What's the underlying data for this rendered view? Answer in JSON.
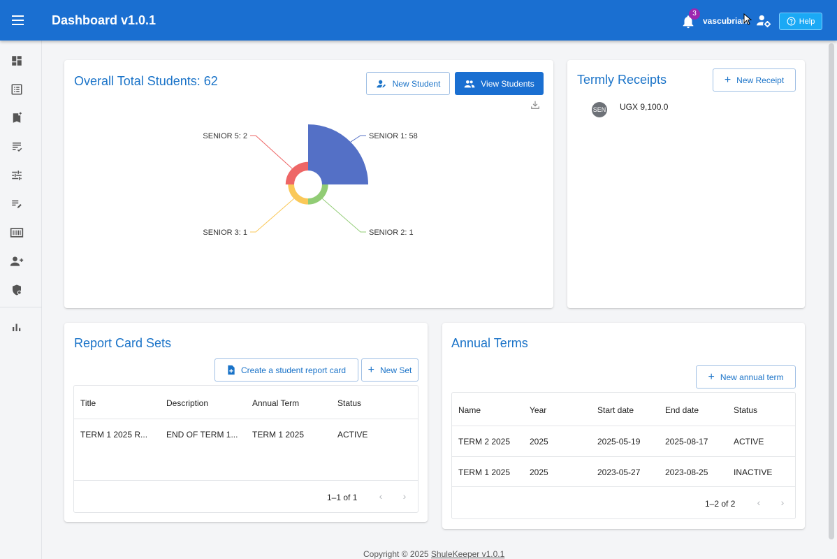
{
  "appbar": {
    "title": "Dashboard v1.0.1",
    "notification_count": "3",
    "username": "vascubrian",
    "help_label": "Help",
    "color": "#1a6fd1"
  },
  "sidebar": {
    "items": [
      {
        "icon": "dashboard-icon"
      },
      {
        "icon": "list-alt-icon"
      },
      {
        "icon": "bookmark-add-icon"
      },
      {
        "icon": "checklist-icon"
      },
      {
        "icon": "tune-icon"
      },
      {
        "icon": "edit-note-icon"
      },
      {
        "icon": "barcode-icon"
      },
      {
        "icon": "person-add-icon"
      },
      {
        "icon": "security-icon"
      },
      {
        "icon": "bar-chart-icon"
      }
    ]
  },
  "students_card": {
    "title": "Overall Total Students: 62",
    "new_student_label": "New Student",
    "view_students_label": "View Students"
  },
  "chart_data": {
    "type": "pie",
    "variant": "nightingale-rose",
    "categories": [
      "SENIOR 1",
      "SENIOR 2",
      "SENIOR 3",
      "SENIOR 5"
    ],
    "values": [
      58,
      1,
      1,
      2
    ],
    "labels": [
      "SENIOR 1: 58",
      "SENIOR 2: 1",
      "SENIOR 3: 1",
      "SENIOR 5: 2"
    ],
    "colors": [
      "#5470c6",
      "#91cc75",
      "#fac858",
      "#ee6666"
    ]
  },
  "receipts_card": {
    "title": "Termly Receipts",
    "new_receipt_label": "New Receipt",
    "items": [
      {
        "avatar": "SEN",
        "amount": "UGX 9,100.0"
      }
    ]
  },
  "report_card_sets": {
    "title": "Report Card Sets",
    "create_label": "Create a student report card",
    "new_set_label": "New Set",
    "columns": [
      "Title",
      "Description",
      "Annual Term",
      "Status"
    ],
    "rows": [
      [
        "TERM 1 2025 R...",
        "END OF TERM 1...",
        "TERM 1 2025",
        "ACTIVE"
      ]
    ],
    "pagination": "1–1 of 1"
  },
  "annual_terms": {
    "title": "Annual Terms",
    "new_label": "New annual term",
    "columns": [
      "Name",
      "Year",
      "Start date",
      "End date",
      "Status"
    ],
    "rows": [
      [
        "TERM 2 2025",
        "2025",
        "2025-05-19",
        "2025-08-17",
        "ACTIVE"
      ],
      [
        "TERM 1 2025",
        "2025",
        "2023-05-27",
        "2023-08-25",
        "INACTIVE"
      ]
    ],
    "pagination": "1–2 of 2"
  },
  "footer": {
    "copyright": "Copyright © 2025",
    "link": "ShuleKeeper v1.0.1"
  }
}
